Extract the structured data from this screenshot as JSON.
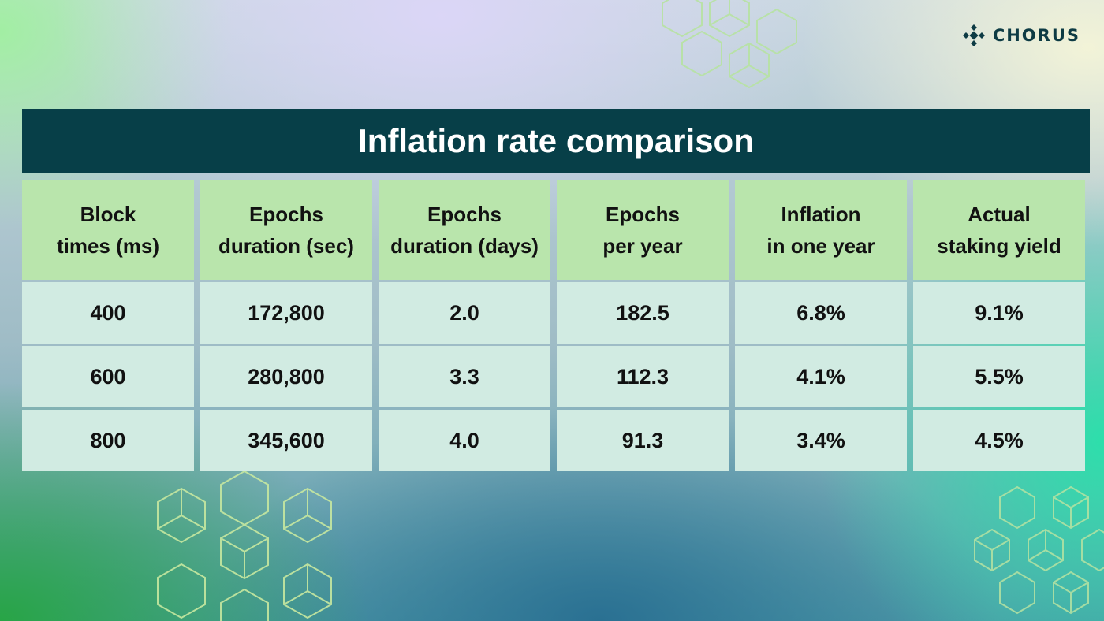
{
  "brand": {
    "name": "CHORUS",
    "logo_icon": "chorus-diamond-logo-icon"
  },
  "title": "Inflation rate comparison",
  "columns": [
    "Block\ntimes (ms)",
    "Epochs\nduration (sec)",
    "Epochs\nduration (days)",
    "Epochs\nper year",
    "Inflation\nin one year",
    "Actual\nstaking yield"
  ],
  "rows": [
    [
      "400",
      "172,800",
      "2.0",
      "182.5",
      "6.8%",
      "9.1%"
    ],
    [
      "600",
      "280,800",
      "3.3",
      "112.3",
      "4.1%",
      "5.5%"
    ],
    [
      "800",
      "345,600",
      "4.0",
      "91.3",
      "3.4%",
      "4.5%"
    ]
  ],
  "colors": {
    "title_bar": "#073f48",
    "header_cell": "#b9e5ac",
    "data_cell": "#d1ebe2",
    "brand_text": "#0d3b44",
    "decor_line": "#b7e3a2"
  },
  "decorations": [
    "hexagon-pattern-icon",
    "cube-pattern-icon"
  ]
}
